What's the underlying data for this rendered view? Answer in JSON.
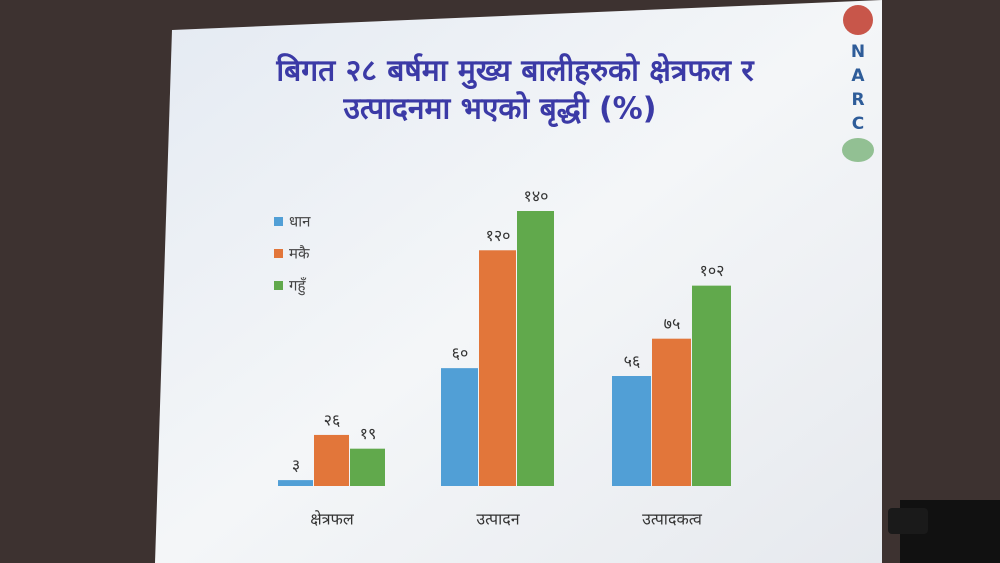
{
  "chart_data": {
    "type": "bar",
    "title": [
      "बिगत २८ बर्षमा मुख्य बालीहरुको क्षेत्रफल र",
      "उत्पादनमा भएको बृद्धी (%)"
    ],
    "logo_letters": [
      "N",
      "A",
      "R",
      "C"
    ],
    "categories": [
      "क्षेत्रफल",
      "उत्पादन",
      "उत्पादकत्व"
    ],
    "series": [
      {
        "name": "धान",
        "color": "#519fd6",
        "values": [
          3,
          60,
          56
        ],
        "value_labels": [
          "३",
          "६०",
          "५६"
        ]
      },
      {
        "name": "मकै",
        "color": "#e2763a",
        "values": [
          26,
          120,
          75
        ],
        "value_labels": [
          "२६",
          "१२०",
          "७५"
        ]
      },
      {
        "name": "गहुँ",
        "color": "#61a94c",
        "values": [
          19,
          140,
          102
        ],
        "value_labels": [
          "१९",
          "१४०",
          "१०२"
        ]
      }
    ],
    "legend": "upper-left"
  }
}
